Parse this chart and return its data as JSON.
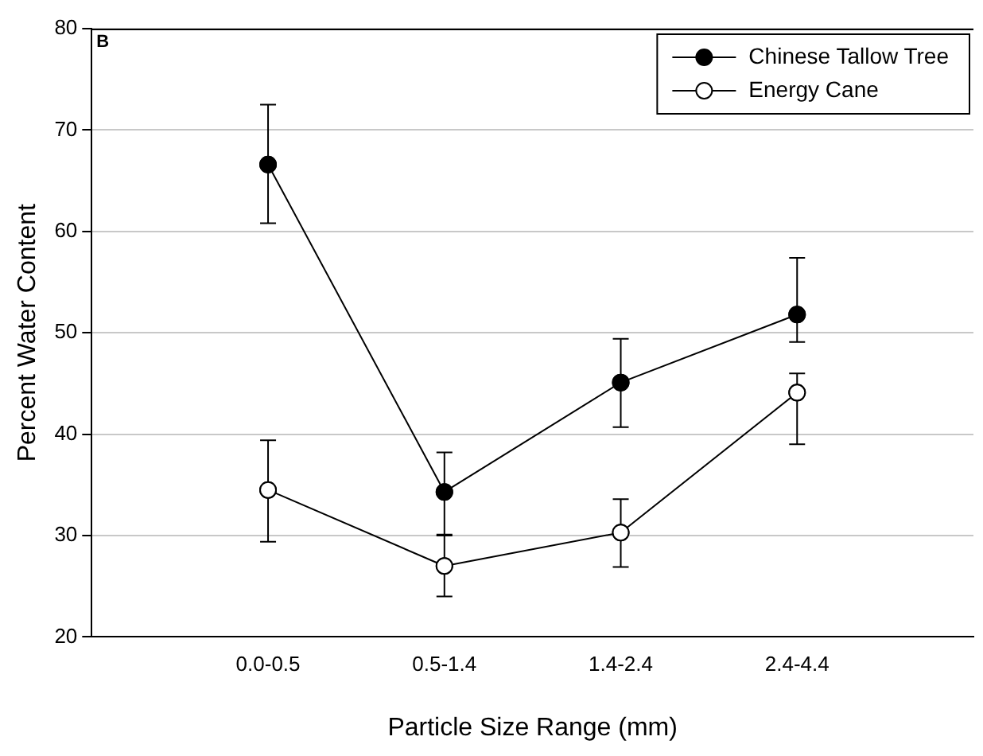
{
  "chart_data": {
    "type": "line",
    "categories": [
      null,
      "0.0-0.5",
      "0.5-1.4",
      "1.4-2.4",
      "2.4-4.4",
      null
    ],
    "series": [
      {
        "name": "Chinese Tallow Tree",
        "color": "#000000",
        "marker": "circle",
        "values": [
          null,
          66.6,
          34.3,
          45.1,
          51.8,
          null
        ],
        "errors": [
          null,
          [
            60.8,
            72.5
          ],
          [
            30.0,
            38.2
          ],
          [
            40.7,
            49.4
          ],
          [
            49.1,
            57.4
          ],
          null
        ]
      },
      {
        "name": "Energy Cane",
        "color": "#000000",
        "marker": "circle",
        "values": [
          null,
          34.5,
          27.0,
          30.3,
          44.1,
          null
        ],
        "errors": [
          null,
          [
            29.4,
            39.4
          ],
          [
            24.0,
            30.1
          ],
          [
            26.9,
            33.6
          ],
          [
            39.0,
            46.0
          ],
          null
        ]
      }
    ],
    "xlabel": "Particle Size Range (mm)",
    "ylabel": "Percent Water Content",
    "ylim": [
      20,
      80
    ],
    "yticks": [
      20,
      30,
      40,
      50,
      60,
      70,
      80
    ],
    "grid": "y",
    "legend": "top right",
    "line_style": "solid",
    "annotations": [
      "B"
    ]
  }
}
